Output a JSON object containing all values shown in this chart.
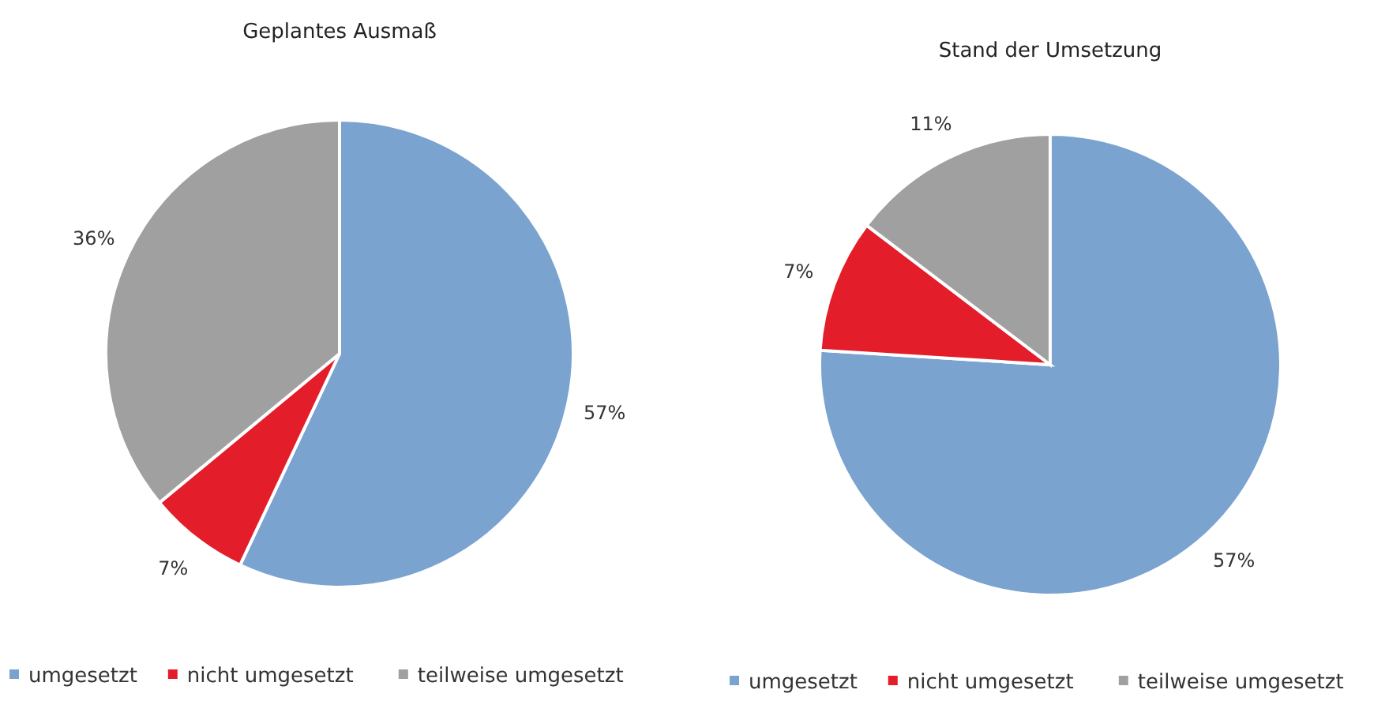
{
  "chart_data": [
    {
      "type": "pie",
      "title": "Geplantes Ausmaß",
      "categories": [
        "umgesetzt",
        "nicht umgesetzt",
        "teilweise umgesetzt"
      ],
      "values": [
        57,
        7,
        36
      ],
      "value_labels": [
        "57%",
        "7%",
        "36%"
      ],
      "colors": [
        "#7ba3cf",
        "#e31e2a",
        "#a0a0a0"
      ],
      "legend": "bottom"
    },
    {
      "type": "pie",
      "title": "Stand der Umsetzung",
      "categories": [
        "umgesetzt",
        "nicht umgesetzt",
        "teilweise umgesetzt"
      ],
      "values": [
        57,
        7,
        11
      ],
      "value_labels": [
        "57%",
        "7%",
        "11%"
      ],
      "colors": [
        "#7ba3cf",
        "#e31e2a",
        "#a0a0a0"
      ],
      "legend": "bottom"
    }
  ]
}
